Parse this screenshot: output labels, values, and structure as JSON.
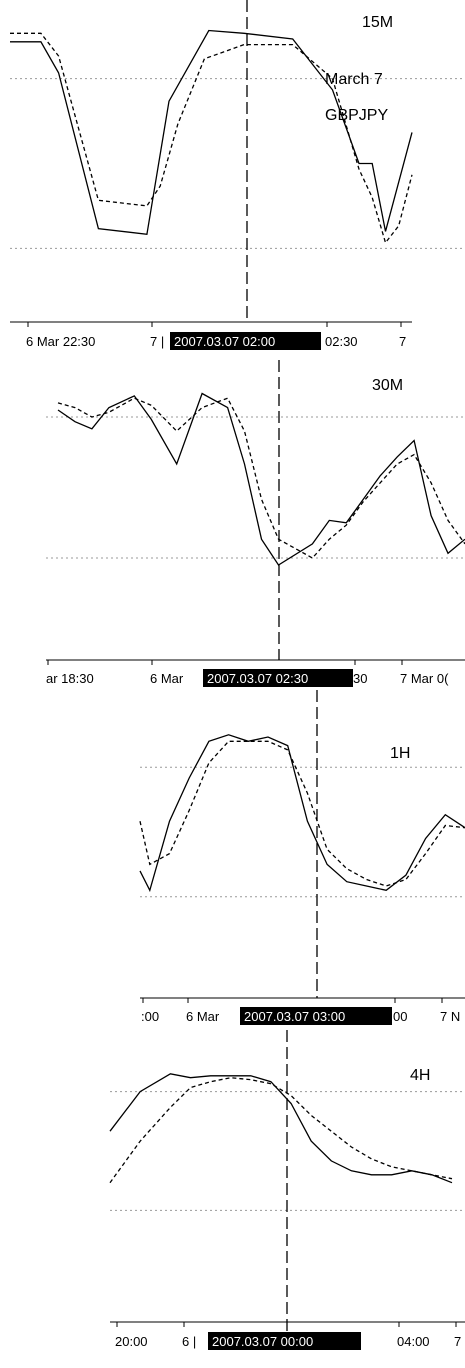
{
  "colors": {
    "background": "#ffffff",
    "line": "#000000",
    "dotted_level": "#9a9a9a",
    "highlight_bg": "#000000",
    "highlight_text": "#ffffff"
  },
  "chart_data": [
    {
      "type": "line",
      "timeframe": "15M",
      "title": "15M",
      "annotation_lines": [
        "March 7",
        "GBPJPY"
      ],
      "ylim": [
        0,
        100
      ],
      "levels": [
        80,
        20
      ],
      "grid": false,
      "x_tick_labels": [
        "6 Mar 22:30",
        "7 |",
        "02:30",
        "7"
      ],
      "highlight_label": "2007.03.07 02:00",
      "series": [
        {
          "style": "solid",
          "x": [
            0,
            7,
            11,
            20,
            31,
            36,
            45,
            53,
            64,
            73,
            79,
            82,
            85,
            91
          ],
          "y": [
            93,
            93,
            82,
            27,
            25,
            72,
            97,
            96,
            94,
            76,
            50,
            50,
            26,
            61
          ]
        },
        {
          "style": "dashed",
          "x": [
            0,
            7,
            11,
            20,
            31,
            34,
            38,
            44,
            53,
            64,
            73,
            79,
            82,
            85,
            88,
            91
          ],
          "y": [
            96,
            96,
            88,
            37,
            35,
            42,
            64,
            87,
            92,
            92,
            80,
            48,
            38,
            22,
            28,
            46
          ]
        }
      ]
    },
    {
      "type": "line",
      "timeframe": "30M",
      "title": "30M",
      "ylim": [
        0,
        100
      ],
      "levels": [
        80,
        20
      ],
      "grid": false,
      "x_tick_labels": [
        "ar 18:30",
        "6 Mar",
        "30",
        "7 Mar 0("
      ],
      "highlight_label": "2007.03.07 02:30",
      "series": [
        {
          "style": "solid",
          "x": [
            0,
            2,
            4,
            6,
            9,
            11,
            14,
            17,
            20,
            22,
            24,
            26,
            30,
            32,
            34,
            36,
            38,
            40,
            42,
            44,
            46,
            48
          ],
          "y": [
            83,
            78,
            75,
            84,
            89,
            79,
            60,
            90,
            84,
            60,
            28,
            17,
            26,
            36,
            35,
            45,
            55,
            63,
            70,
            38,
            22,
            28
          ]
        },
        {
          "style": "dashed",
          "x": [
            0,
            2,
            4,
            6,
            9,
            11,
            14,
            17,
            20,
            22,
            24,
            26,
            30,
            32,
            34,
            36,
            38,
            40,
            42,
            44,
            46,
            48
          ],
          "y": [
            86,
            84,
            80,
            82,
            88,
            85,
            74,
            84,
            88,
            74,
            45,
            28,
            20,
            28,
            34,
            44,
            52,
            60,
            64,
            52,
            36,
            26
          ]
        }
      ]
    },
    {
      "type": "line",
      "timeframe": "1H",
      "title": "1H",
      "ylim": [
        0,
        100
      ],
      "levels": [
        80,
        20
      ],
      "grid": false,
      "x_tick_labels": [
        ":00",
        "6 Mar",
        "00",
        "7 N"
      ],
      "highlight_label": "2007.03.07 03:00",
      "series": [
        {
          "style": "solid",
          "x": [
            0,
            1,
            3,
            5,
            7,
            9,
            11,
            13,
            15,
            17,
            19,
            21,
            23,
            25,
            27,
            29,
            31,
            33
          ],
          "y": [
            32,
            23,
            55,
            75,
            92,
            95,
            92,
            94,
            90,
            55,
            35,
            27,
            25,
            23,
            30,
            47,
            58,
            52
          ]
        },
        {
          "style": "dashed",
          "x": [
            0,
            1,
            3,
            5,
            7,
            9,
            11,
            13,
            15,
            17,
            19,
            21,
            23,
            25,
            27,
            29,
            31,
            33
          ],
          "y": [
            55,
            35,
            40,
            60,
            82,
            92,
            92,
            92,
            88,
            68,
            42,
            33,
            28,
            25,
            28,
            40,
            53,
            52
          ]
        }
      ]
    },
    {
      "type": "line",
      "timeframe": "4H",
      "title": "4H",
      "ylim": [
        0,
        100
      ],
      "levels": [
        80,
        20
      ],
      "grid": false,
      "x_tick_labels": [
        "20:00",
        "6 |",
        "04:00",
        "7"
      ],
      "highlight_label": "2007.03.07 00:00",
      "series": [
        {
          "style": "solid",
          "x": [
            0,
            3,
            6,
            8,
            10,
            12,
            14,
            16,
            18,
            20,
            22,
            24,
            26,
            28,
            30,
            32,
            34
          ],
          "y": [
            60,
            80,
            89,
            87,
            88,
            88,
            88,
            85,
            74,
            55,
            45,
            40,
            38,
            38,
            40,
            38,
            34
          ]
        },
        {
          "style": "dashed",
          "x": [
            0,
            3,
            6,
            8,
            10,
            12,
            14,
            16,
            18,
            20,
            22,
            24,
            26,
            28,
            30,
            32,
            34
          ],
          "y": [
            34,
            55,
            72,
            82,
            85,
            87,
            86,
            84,
            78,
            68,
            60,
            52,
            46,
            42,
            40,
            38,
            36
          ]
        }
      ]
    }
  ]
}
